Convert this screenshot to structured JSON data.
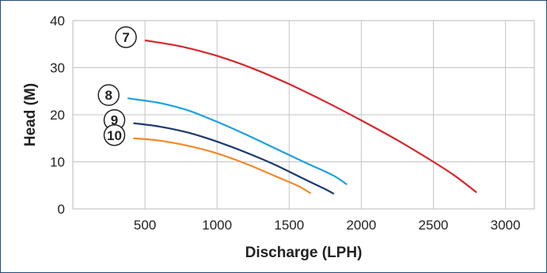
{
  "chart_data": {
    "type": "line",
    "xlabel": "Discharge (LPH)",
    "ylabel": "Head (M)",
    "xlim": [
      0,
      3200
    ],
    "ylim": [
      0,
      40
    ],
    "x_ticks": [
      500,
      1000,
      1500,
      2000,
      2500,
      3000
    ],
    "y_ticks": [
      0,
      10,
      20,
      30,
      40
    ],
    "grid": true,
    "series": [
      {
        "name": "⑦",
        "color": "#d7262d",
        "points": [
          [
            500,
            35.8
          ],
          [
            750,
            34.5
          ],
          [
            1000,
            32.5
          ],
          [
            1250,
            29.8
          ],
          [
            1500,
            26.5
          ],
          [
            1750,
            22.8
          ],
          [
            2000,
            18.8
          ],
          [
            2250,
            14.6
          ],
          [
            2500,
            10.0
          ],
          [
            2650,
            7.0
          ],
          [
            2800,
            3.5
          ]
        ]
      },
      {
        "name": "⑧",
        "color": "#1ba1db",
        "points": [
          [
            380,
            23.5
          ],
          [
            600,
            22.5
          ],
          [
            800,
            20.9
          ],
          [
            1000,
            18.5
          ],
          [
            1200,
            15.8
          ],
          [
            1400,
            12.9
          ],
          [
            1600,
            10.0
          ],
          [
            1800,
            7.2
          ],
          [
            1900,
            5.2
          ]
        ]
      },
      {
        "name": "⑨",
        "color": "#1a3a6e",
        "points": [
          [
            420,
            18.2
          ],
          [
            600,
            17.5
          ],
          [
            800,
            16.2
          ],
          [
            1000,
            14.3
          ],
          [
            1200,
            12.0
          ],
          [
            1400,
            9.4
          ],
          [
            1600,
            6.4
          ],
          [
            1750,
            4.2
          ],
          [
            1810,
            3.2
          ]
        ]
      },
      {
        "name": "⑩",
        "color": "#ef8a2b",
        "points": [
          [
            420,
            15.0
          ],
          [
            600,
            14.5
          ],
          [
            800,
            13.4
          ],
          [
            1000,
            11.8
          ],
          [
            1200,
            9.6
          ],
          [
            1400,
            7.0
          ],
          [
            1560,
            4.9
          ],
          [
            1650,
            3.3
          ]
        ]
      }
    ]
  }
}
